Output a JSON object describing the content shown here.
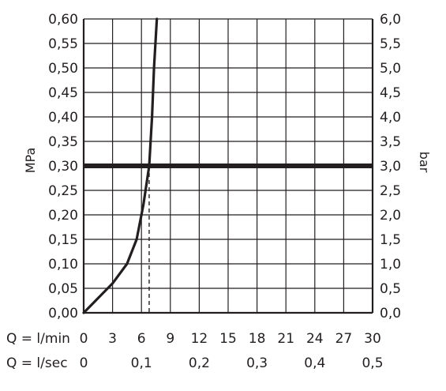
{
  "chart_data": {
    "type": "line",
    "ylabel_left": "MPa",
    "ylabel_right": "bar",
    "x_lmin_label": "Q = l/min",
    "x_lsec_label": "Q = l/sec",
    "x_lmin_ticks": [
      "0",
      "3",
      "6",
      "9",
      "12",
      "15",
      "18",
      "21",
      "24",
      "27",
      "30"
    ],
    "x_lsec_ticks": [
      "0",
      "0,1",
      "0,2",
      "0,3",
      "0,4",
      "0,5"
    ],
    "y_left_ticks": [
      "0,00",
      "0,05",
      "0,10",
      "0,15",
      "0,20",
      "0,25",
      "0,30",
      "0,35",
      "0,40",
      "0,45",
      "0,50",
      "0,55",
      "0,60"
    ],
    "y_right_ticks": [
      "0,0",
      "0,5",
      "1,0",
      "1,5",
      "2,0",
      "2,5",
      "3,0",
      "3,5",
      "4,0",
      "4,5",
      "5,0",
      "5,5",
      "6,0"
    ],
    "xlim": [
      0,
      30
    ],
    "ylim": [
      0,
      0.6
    ],
    "grid": true,
    "series": [
      {
        "x": [
          0,
          1.5,
          3,
          4.5,
          5.5,
          6.2,
          6.8,
          7.1,
          7.3,
          7.6
        ],
        "y": [
          0,
          0.03,
          0.06,
          0.1,
          0.15,
          0.22,
          0.3,
          0.4,
          0.5,
          0.6
        ]
      }
    ],
    "reference_line_y": 0.3,
    "marker_x": 6.8
  }
}
